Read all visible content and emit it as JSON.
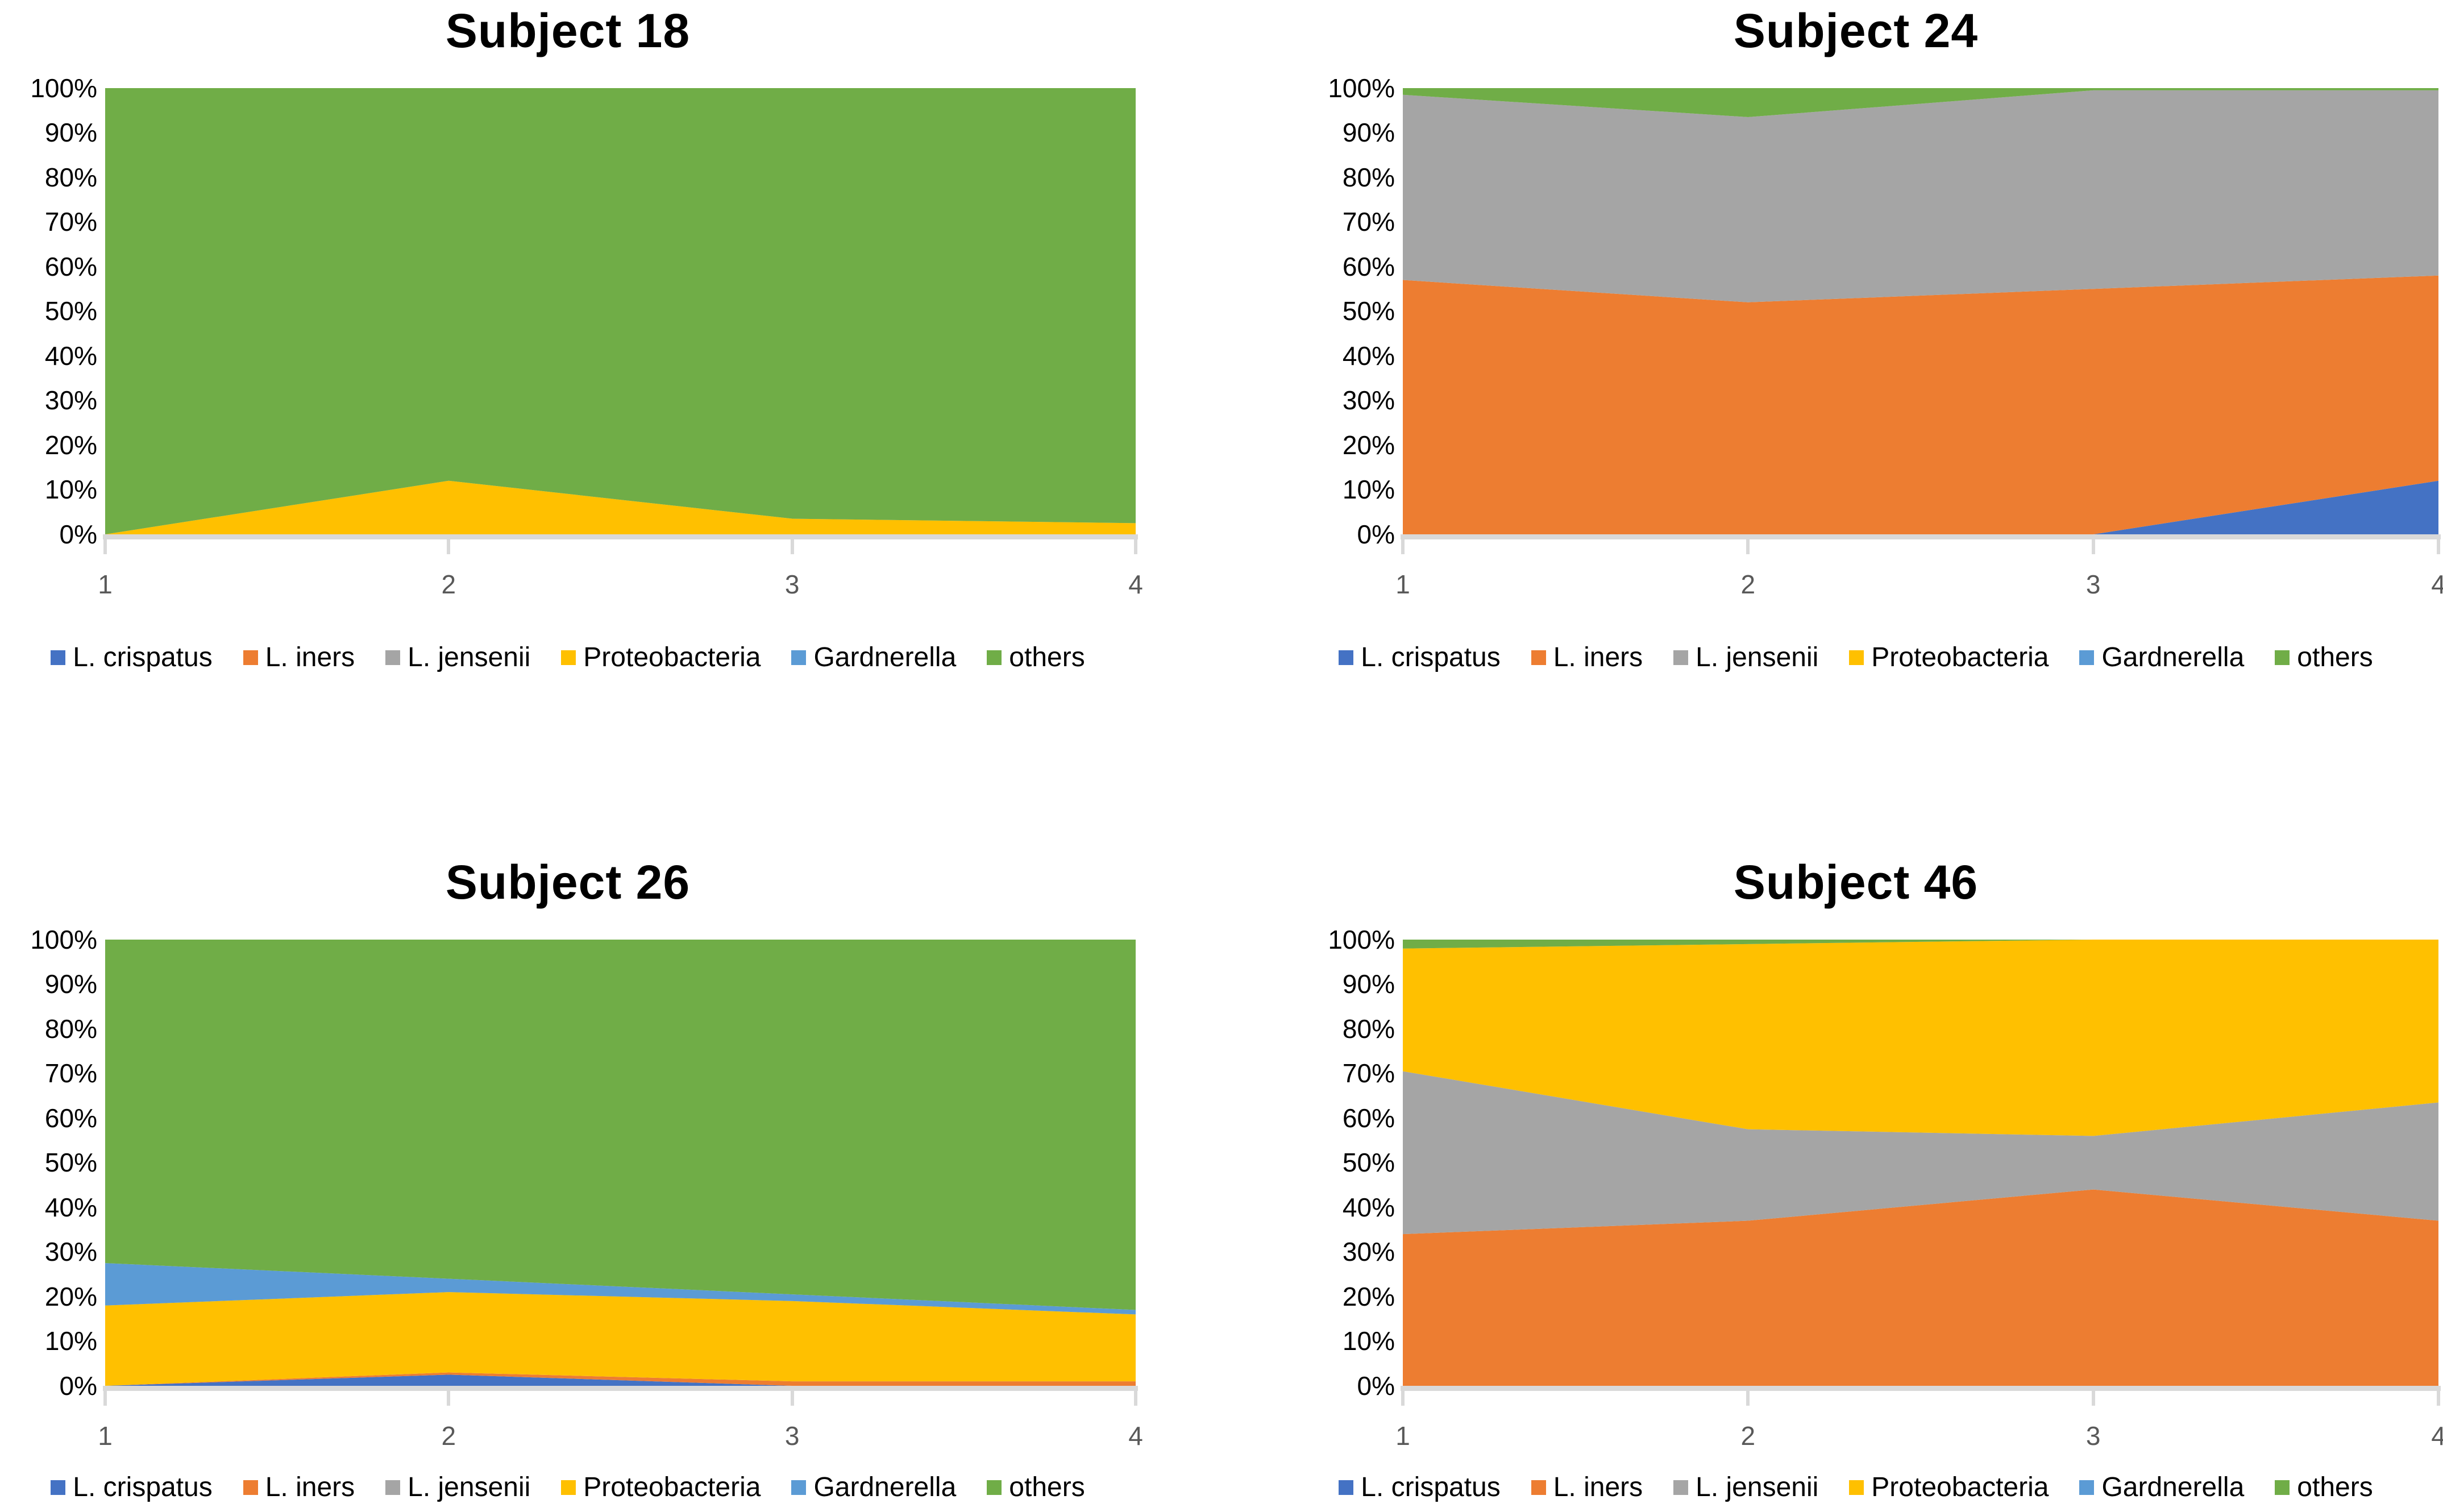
{
  "colors": {
    "l_crispatus": "#4472C4",
    "l_iners": "#ED7D31",
    "l_jensenii": "#A5A5A5",
    "proteobacteria": "#FFC000",
    "gardnerella": "#5B9BD5",
    "others": "#70AD47",
    "axis_line": "#D9D9D9",
    "x_label": "#595959",
    "y_label": "#000000",
    "title": "#000000"
  },
  "legend": {
    "items": [
      {
        "label": "L. crispatus",
        "color": "#4472C4"
      },
      {
        "label": "L. iners",
        "color": "#ED7D31"
      },
      {
        "label": "L. jensenii",
        "color": "#A5A5A5"
      },
      {
        "label": "Proteobacteria",
        "color": "#FFC000"
      },
      {
        "label": "Gardnerella",
        "color": "#5B9BD5"
      },
      {
        "label": "others",
        "color": "#70AD47"
      }
    ],
    "position": "bottom"
  },
  "y_axis": {
    "tick_labels": [
      "100%",
      "90%",
      "80%",
      "70%",
      "60%",
      "50%",
      "40%",
      "30%",
      "20%",
      "10%",
      "0%"
    ],
    "range": [
      0,
      100
    ],
    "grid": false
  },
  "x_axis": {
    "tick_labels": [
      "1",
      "2",
      "3",
      "4"
    ],
    "range": [
      1,
      4
    ]
  },
  "chart_data": [
    {
      "type": "area",
      "stacked": true,
      "percent_stacked": true,
      "title": "Subject 18",
      "x": [
        1,
        2,
        3,
        4
      ],
      "ylim": [
        0,
        100
      ],
      "legend_position": "bottom",
      "series": [
        {
          "name": "L. crispatus",
          "values": [
            0,
            0,
            0,
            0
          ]
        },
        {
          "name": "L. iners",
          "values": [
            0,
            0,
            0,
            0
          ]
        },
        {
          "name": "L. jensenii",
          "values": [
            0,
            0,
            0,
            0
          ]
        },
        {
          "name": "Proteobacteria",
          "values": [
            0,
            12,
            3.5,
            2.5
          ]
        },
        {
          "name": "Gardnerella",
          "values": [
            0,
            0,
            0,
            0
          ]
        },
        {
          "name": "others",
          "values": [
            100,
            88,
            96.5,
            97.5
          ]
        }
      ]
    },
    {
      "type": "area",
      "stacked": true,
      "percent_stacked": true,
      "title": "Subject 24",
      "x": [
        1,
        2,
        3,
        4
      ],
      "ylim": [
        0,
        100
      ],
      "legend_position": "bottom",
      "series": [
        {
          "name": "L. crispatus",
          "values": [
            0,
            0,
            0,
            12
          ]
        },
        {
          "name": "L. iners",
          "values": [
            57,
            52,
            55,
            46
          ]
        },
        {
          "name": "L. jensenii",
          "values": [
            41.5,
            41.5,
            44.5,
            41.5
          ]
        },
        {
          "name": "Proteobacteria",
          "values": [
            0,
            0,
            0,
            0
          ]
        },
        {
          "name": "Gardnerella",
          "values": [
            0,
            0,
            0,
            0
          ]
        },
        {
          "name": "others",
          "values": [
            1.5,
            6.5,
            0.5,
            0.5
          ]
        }
      ]
    },
    {
      "type": "area",
      "stacked": true,
      "percent_stacked": true,
      "title": "Subject 26",
      "x": [
        1,
        2,
        3,
        4
      ],
      "ylim": [
        0,
        100
      ],
      "legend_position": "bottom",
      "series": [
        {
          "name": "L. crispatus",
          "values": [
            0,
            2.5,
            0,
            0
          ]
        },
        {
          "name": "L. iners",
          "values": [
            0,
            0.5,
            1,
            1
          ]
        },
        {
          "name": "L. jensenii",
          "values": [
            0,
            0,
            0,
            0
          ]
        },
        {
          "name": "Proteobacteria",
          "values": [
            18,
            18,
            18,
            15
          ]
        },
        {
          "name": "Gardnerella",
          "values": [
            9.5,
            3,
            1.5,
            1
          ]
        },
        {
          "name": "others",
          "values": [
            72.5,
            76,
            79.5,
            83
          ]
        }
      ]
    },
    {
      "type": "area",
      "stacked": true,
      "percent_stacked": true,
      "title": "Subject 46",
      "x": [
        1,
        2,
        3,
        4
      ],
      "ylim": [
        0,
        100
      ],
      "legend_position": "bottom",
      "series": [
        {
          "name": "L. crispatus",
          "values": [
            0,
            0,
            0,
            0
          ]
        },
        {
          "name": "L. iners",
          "values": [
            34,
            37,
            44,
            37
          ]
        },
        {
          "name": "L. jensenii",
          "values": [
            36.5,
            20.5,
            12,
            26.5
          ]
        },
        {
          "name": "Proteobacteria",
          "values": [
            27.5,
            41.5,
            44,
            36.5
          ]
        },
        {
          "name": "Gardnerella",
          "values": [
            0,
            0,
            0,
            0
          ]
        },
        {
          "name": "others",
          "values": [
            2,
            1,
            0,
            0
          ]
        }
      ]
    }
  ]
}
